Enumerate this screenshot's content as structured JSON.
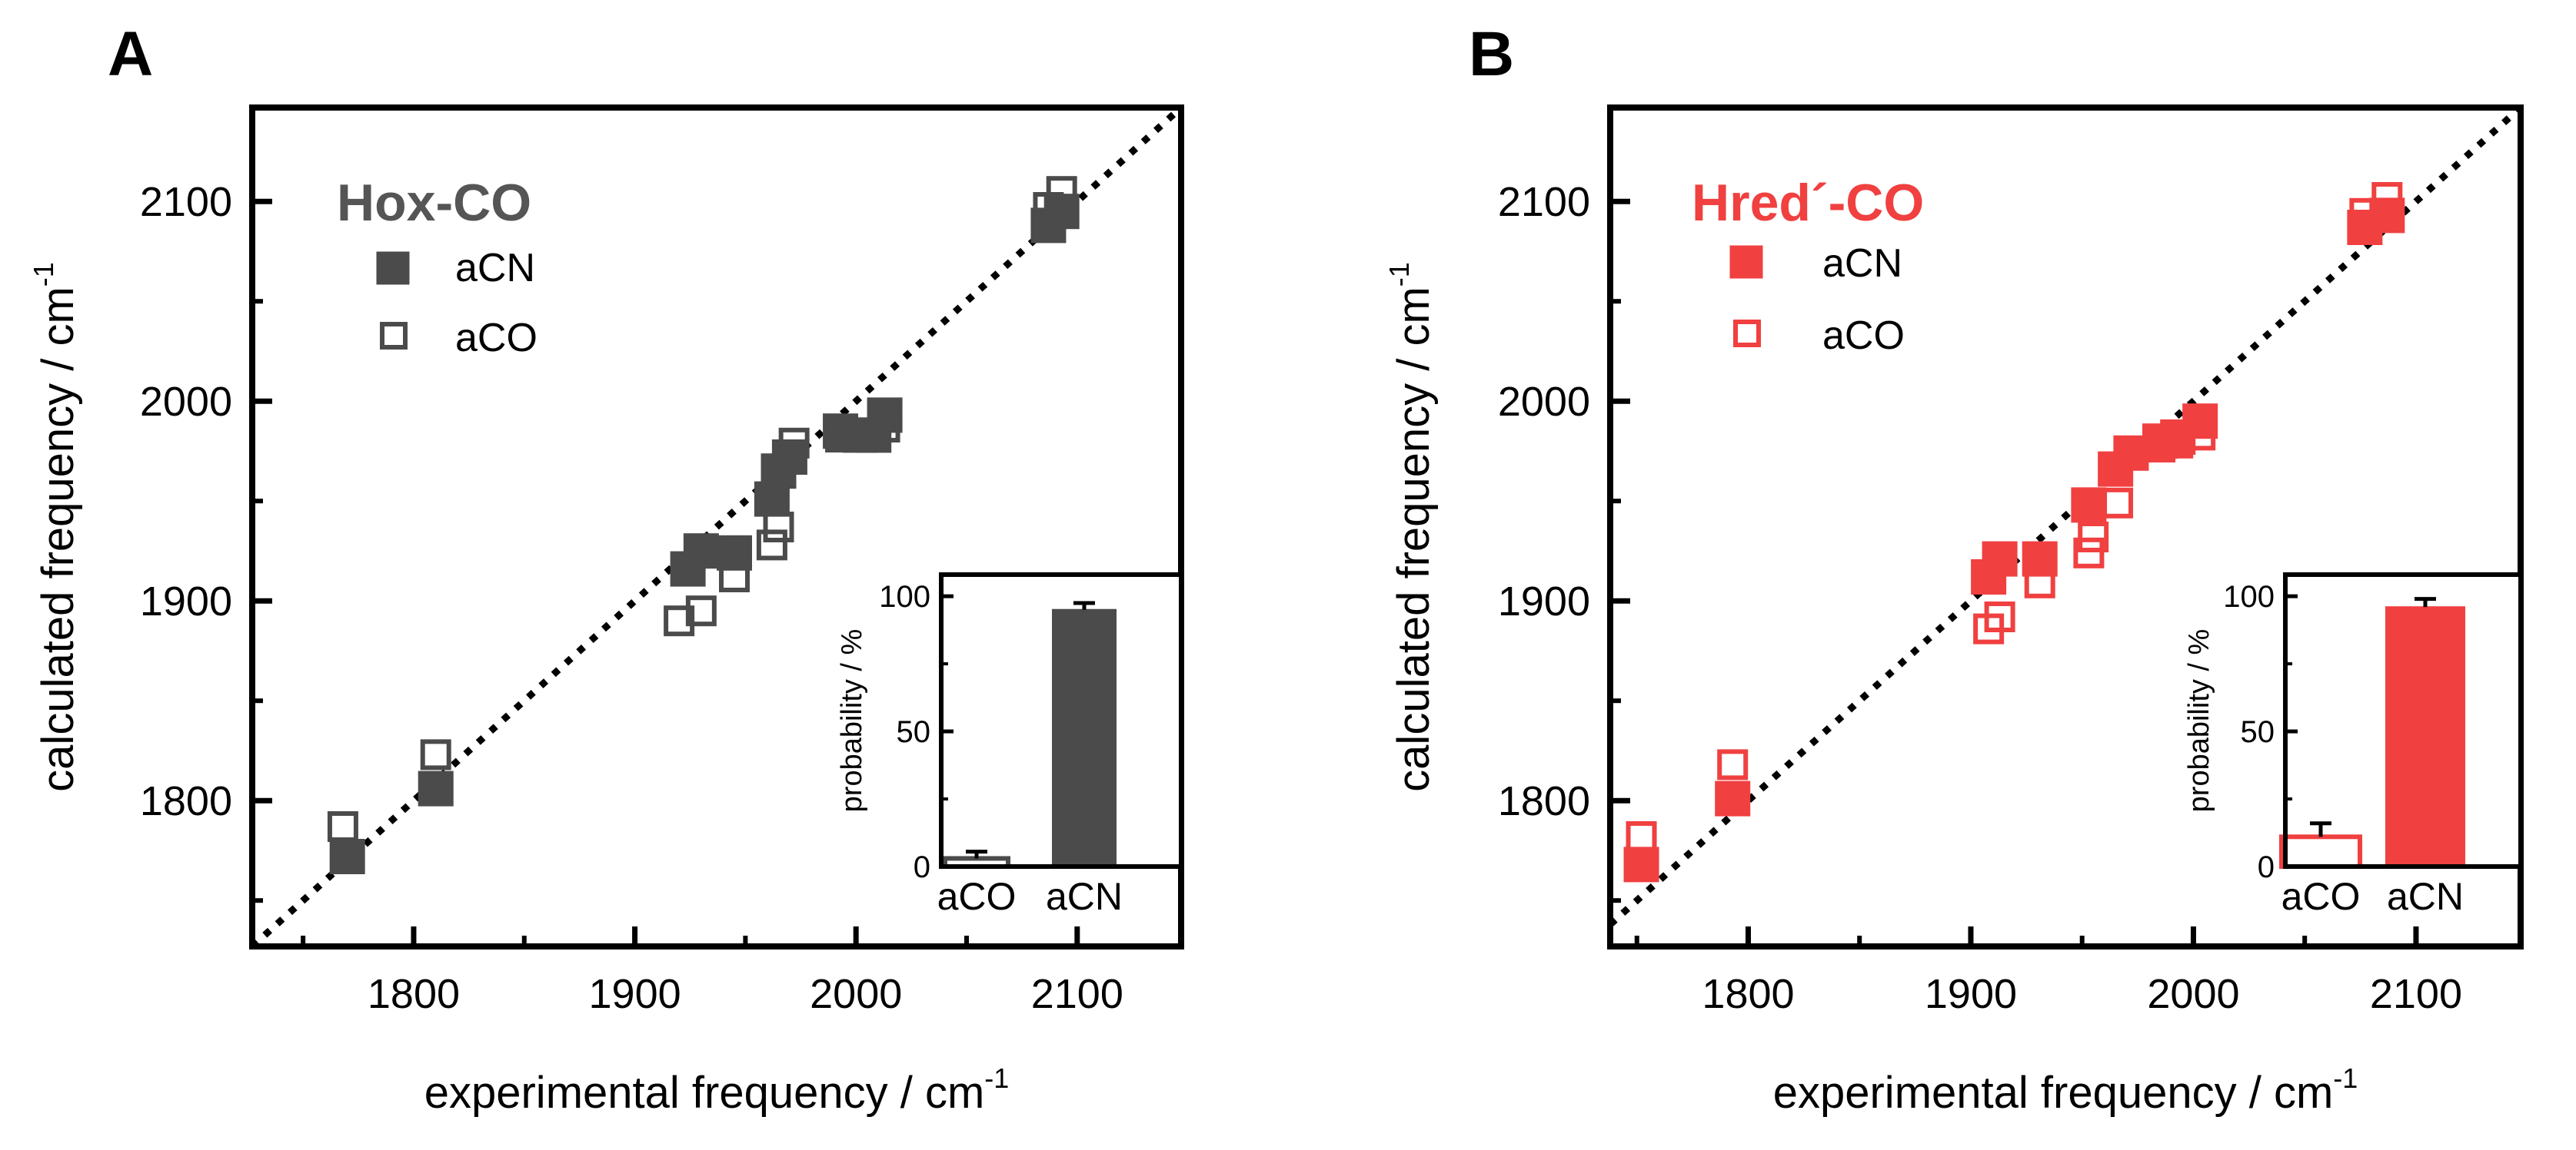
{
  "colors": {
    "a_series": "#4b4b4b",
    "b_series": "#f04040",
    "b_title": "#f04040",
    "a_title": "#555555",
    "axis": "#000000"
  },
  "panels": {
    "A": {
      "letter": "A"
    },
    "B": {
      "letter": "B"
    }
  },
  "chart_data": [
    {
      "id": "A",
      "type": "scatter",
      "title": "Hox-CO",
      "xlabel": "experimental frequency / cm",
      "xlabel_sup": "-1",
      "ylabel": "calculated frequency / cm",
      "ylabel_sup": "-1",
      "xlim": [
        1727,
        2147
      ],
      "ylim": [
        1727,
        2147
      ],
      "xticks": [
        1800,
        1900,
        2000,
        2100
      ],
      "yticks": [
        1800,
        1900,
        2000,
        2100
      ],
      "diagonal": "y = x (dotted)",
      "legend": [
        "aCN",
        "aCO"
      ],
      "series": [
        {
          "name": "aCN",
          "marker": "filled-square",
          "points": [
            [
              1770,
              1772
            ],
            [
              1810,
              1806
            ],
            [
              1924,
              1916
            ],
            [
              1930,
              1925
            ],
            [
              1945,
              1924
            ],
            [
              1962,
              1951
            ],
            [
              1965,
              1965
            ],
            [
              1970,
              1972
            ],
            [
              1993,
              1985
            ],
            [
              2002,
              1983
            ],
            [
              2008,
              1983
            ],
            [
              2013,
              1993
            ],
            [
              2087,
              2088
            ],
            [
              2093,
              2095
            ]
          ]
        },
        {
          "name": "aCO",
          "marker": "open-square",
          "points": [
            [
              1768,
              1787
            ],
            [
              1810,
              1823
            ],
            [
              1920,
              1890
            ],
            [
              1930,
              1895
            ],
            [
              1945,
              1912
            ],
            [
              1962,
              1928
            ],
            [
              1965,
              1937
            ],
            [
              1972,
              1979
            ],
            [
              1993,
              1982
            ],
            [
              2013,
              1987
            ],
            [
              2087,
              2097
            ],
            [
              2093,
              2105
            ]
          ]
        }
      ],
      "inset": {
        "type": "bar",
        "ylabel": "probability / %",
        "categories": [
          "aCO",
          "aCN"
        ],
        "values": [
          3,
          95
        ],
        "errors": [
          2.5,
          2.5
        ],
        "styles": [
          "open",
          "filled"
        ],
        "ylim": [
          0,
          108
        ],
        "yticks": [
          0,
          50,
          100
        ]
      }
    },
    {
      "id": "B",
      "type": "scatter",
      "title": "Hred´-CO",
      "xlabel": "experimental frequency / cm",
      "xlabel_sup": "-1",
      "ylabel": "calculated frequency / cm",
      "ylabel_sup": "-1",
      "xlim": [
        1738,
        2147
      ],
      "ylim": [
        1727,
        2147
      ],
      "xticks": [
        1800,
        1900,
        2000,
        2100
      ],
      "yticks": [
        1800,
        1900,
        2000,
        2100
      ],
      "diagonal": "y = x (dotted)",
      "legend": [
        "aCN",
        "aCO"
      ],
      "series": [
        {
          "name": "aCN",
          "marker": "filled-square",
          "points": [
            [
              1752,
              1768
            ],
            [
              1793,
              1801
            ],
            [
              1908,
              1912
            ],
            [
              1913,
              1921
            ],
            [
              1931,
              1921
            ],
            [
              1953,
              1948
            ],
            [
              1965,
              1966
            ],
            [
              1972,
              1974
            ],
            [
              1985,
              1980
            ],
            [
              1993,
              1982
            ],
            [
              2003,
              1990
            ],
            [
              2077,
              2087
            ],
            [
              2087,
              2093
            ]
          ]
        },
        {
          "name": "aCO",
          "marker": "open-square",
          "points": [
            [
              1752,
              1782
            ],
            [
              1793,
              1818
            ],
            [
              1908,
              1886
            ],
            [
              1913,
              1892
            ],
            [
              1931,
              1909
            ],
            [
              1953,
              1924
            ],
            [
              1955,
              1932
            ],
            [
              1966,
              1949
            ],
            [
              1985,
              1977
            ],
            [
              1993,
              1979
            ],
            [
              2003,
              1983
            ],
            [
              2077,
              2094
            ],
            [
              2087,
              2102
            ]
          ]
        }
      ],
      "inset": {
        "type": "bar",
        "ylabel": "probability / %",
        "categories": [
          "aCO",
          "aCN"
        ],
        "values": [
          11,
          96
        ],
        "errors": [
          5,
          3
        ],
        "styles": [
          "open",
          "filled"
        ],
        "ylim": [
          0,
          108
        ],
        "yticks": [
          0,
          50,
          100
        ]
      }
    }
  ]
}
